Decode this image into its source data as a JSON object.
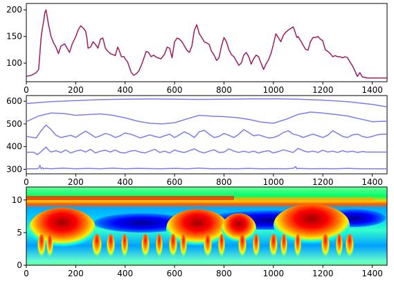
{
  "chart_data": [
    {
      "type": "line",
      "title": "",
      "xlabel": "",
      "ylabel": "",
      "xlim": [
        0,
        1460
      ],
      "ylim": [
        65,
        212
      ],
      "xticks": [
        "0",
        "200",
        "400",
        "600",
        "800",
        "1000",
        "1200",
        "1400"
      ],
      "yticks": [
        "100",
        "150",
        "200"
      ],
      "grid": false,
      "color": "#a0195f",
      "series": [
        {
          "x": [
            0,
            20,
            40,
            50,
            55,
            60,
            65,
            70,
            75,
            80,
            90,
            100,
            110,
            120,
            130,
            140,
            155,
            165,
            175,
            185,
            200,
            210,
            220,
            230,
            240,
            245,
            250,
            260,
            270,
            280,
            290,
            300,
            310,
            320,
            330,
            340,
            350,
            360,
            370,
            375,
            385,
            395,
            400,
            410,
            425,
            435,
            445,
            455,
            465,
            475,
            485,
            495,
            505,
            515,
            530,
            545,
            560,
            570,
            580,
            590,
            600,
            610,
            620,
            630,
            640,
            650,
            660,
            670,
            680,
            690,
            700,
            710,
            720,
            730,
            740,
            750,
            760,
            770,
            780,
            790,
            800,
            810,
            820,
            830,
            840,
            850,
            860,
            870,
            880,
            890,
            900,
            910,
            920,
            930,
            940,
            950,
            960,
            970,
            980,
            990,
            1000,
            1010,
            1020,
            1030,
            1040,
            1050,
            1060,
            1070,
            1080,
            1085,
            1090,
            1095,
            1100,
            1110,
            1120,
            1130,
            1140,
            1150,
            1160,
            1170,
            1180,
            1190,
            1200,
            1210,
            1220,
            1230,
            1240,
            1250,
            1260,
            1270,
            1280,
            1290,
            1300,
            1310,
            1320,
            1330,
            1335,
            1340,
            1350,
            1360,
            1380,
            1420,
            1460
          ],
          "values": [
            75,
            77,
            82,
            88,
            118,
            148,
            165,
            178,
            195,
            200,
            172,
            150,
            138,
            130,
            118,
            132,
            136,
            128,
            120,
            135,
            150,
            162,
            170,
            166,
            160,
            148,
            128,
            130,
            140,
            135,
            128,
            145,
            147,
            128,
            122,
            118,
            116,
            114,
            130,
            125,
            112,
            112,
            108,
            102,
            82,
            77,
            80,
            85,
            95,
            108,
            122,
            120,
            112,
            115,
            110,
            108,
            117,
            130,
            128,
            110,
            140,
            147,
            145,
            140,
            132,
            124,
            120,
            132,
            162,
            172,
            155,
            148,
            140,
            138,
            135,
            122,
            115,
            105,
            110,
            132,
            148,
            140,
            125,
            116,
            112,
            104,
            96,
            100,
            115,
            120,
            112,
            98,
            108,
            115,
            112,
            100,
            88,
            98,
            106,
            118,
            135,
            155,
            148,
            140,
            152,
            158,
            162,
            165,
            168,
            162,
            155,
            148,
            150,
            142,
            134,
            126,
            124,
            140,
            148,
            148,
            150,
            145,
            142,
            125,
            122,
            118,
            112,
            114,
            112,
            112,
            110,
            112,
            110,
            102,
            95,
            85,
            80,
            75,
            82,
            74,
            72,
            72,
            72
          ]
        }
      ]
    },
    {
      "type": "line",
      "title": "",
      "xlabel": "",
      "ylabel": "",
      "xlim": [
        0,
        1460
      ],
      "ylim": [
        280,
        625
      ],
      "xticks": [
        "0",
        "200",
        "400",
        "600",
        "800",
        "1000",
        "1200",
        "1400"
      ],
      "yticks": [
        "300",
        "400",
        "500",
        "600"
      ],
      "grid": false,
      "color": "#7b7bf0",
      "series": [
        {
          "x": [
            0,
            100,
            200,
            300,
            400,
            500,
            600,
            700,
            800,
            900,
            1000,
            1100,
            1200,
            1300,
            1400,
            1460
          ],
          "values": [
            590,
            598,
            603,
            607,
            609,
            610,
            609,
            608,
            609,
            610,
            611,
            609,
            605,
            598,
            586,
            575
          ]
        },
        {
          "x": [
            0,
            50,
            100,
            150,
            200,
            250,
            300,
            350,
            400,
            450,
            500,
            550,
            600,
            650,
            700,
            750,
            800,
            850,
            900,
            950,
            1000,
            1050,
            1100,
            1150,
            1200,
            1250,
            1300,
            1350,
            1400,
            1460
          ],
          "values": [
            510,
            535,
            548,
            546,
            538,
            541,
            544,
            538,
            527,
            512,
            503,
            500,
            505,
            522,
            538,
            534,
            532,
            528,
            520,
            508,
            503,
            520,
            542,
            552,
            548,
            542,
            535,
            522,
            510,
            512
          ]
        },
        {
          "x": [
            0,
            40,
            60,
            80,
            100,
            120,
            140,
            160,
            180,
            200,
            220,
            240,
            260,
            280,
            300,
            320,
            340,
            360,
            380,
            400,
            420,
            440,
            460,
            480,
            500,
            520,
            540,
            560,
            580,
            600,
            620,
            640,
            660,
            680,
            700,
            720,
            740,
            760,
            780,
            800,
            820,
            840,
            860,
            880,
            900,
            920,
            940,
            960,
            980,
            1000,
            1020,
            1040,
            1060,
            1080,
            1100,
            1120,
            1140,
            1160,
            1180,
            1200,
            1220,
            1240,
            1260,
            1280,
            1300,
            1320,
            1340,
            1360,
            1380,
            1400,
            1420,
            1440,
            1460
          ],
          "values": [
            445,
            438,
            470,
            495,
            475,
            450,
            440,
            445,
            450,
            440,
            455,
            468,
            455,
            440,
            448,
            458,
            452,
            440,
            448,
            460,
            455,
            448,
            438,
            445,
            452,
            445,
            440,
            448,
            455,
            440,
            452,
            465,
            455,
            440,
            465,
            472,
            455,
            440,
            445,
            458,
            450,
            440,
            455,
            475,
            462,
            448,
            452,
            445,
            438,
            440,
            448,
            462,
            470,
            455,
            450,
            440,
            448,
            455,
            448,
            440,
            450,
            470,
            458,
            445,
            440,
            452,
            455,
            445,
            440,
            445,
            452,
            455,
            455
          ]
        },
        {
          "x": [
            0,
            30,
            45,
            60,
            70,
            80,
            90,
            100,
            120,
            140,
            160,
            180,
            200,
            220,
            240,
            260,
            280,
            300,
            320,
            340,
            360,
            380,
            400,
            420,
            440,
            460,
            480,
            500,
            520,
            540,
            560,
            580,
            600,
            620,
            640,
            660,
            680,
            700,
            720,
            740,
            760,
            780,
            800,
            820,
            840,
            860,
            880,
            900,
            920,
            940,
            960,
            980,
            1000,
            1020,
            1040,
            1060,
            1080,
            1100,
            1120,
            1140,
            1160,
            1180,
            1200,
            1220,
            1240,
            1260,
            1280,
            1300,
            1320,
            1340,
            1360,
            1380,
            1400,
            1420,
            1440,
            1460
          ],
          "values": [
            375,
            375,
            365,
            378,
            388,
            398,
            385,
            376,
            382,
            374,
            385,
            372,
            380,
            385,
            376,
            388,
            372,
            380,
            384,
            376,
            385,
            374,
            372,
            380,
            383,
            376,
            372,
            380,
            388,
            374,
            380,
            372,
            385,
            378,
            374,
            382,
            390,
            378,
            372,
            380,
            386,
            374,
            376,
            390,
            380,
            374,
            380,
            374,
            380,
            372,
            378,
            382,
            372,
            378,
            386,
            380,
            374,
            392,
            382,
            376,
            380,
            374,
            384,
            376,
            380,
            374,
            382,
            376,
            380,
            374,
            378,
            376,
            376,
            376,
            376,
            376
          ]
        },
        {
          "x": [
            0,
            40,
            50,
            55,
            60,
            65,
            70,
            80,
            100,
            150,
            200,
            250,
            300,
            350,
            400,
            450,
            500,
            550,
            600,
            650,
            700,
            750,
            800,
            850,
            900,
            950,
            1000,
            1050,
            1080,
            1090,
            1095,
            1100,
            1150,
            1200,
            1250,
            1300,
            1350,
            1400,
            1460
          ],
          "values": [
            302,
            302,
            304,
            318,
            302,
            307,
            302,
            304,
            302,
            305,
            302,
            304,
            302,
            305,
            302,
            304,
            303,
            302,
            304,
            302,
            305,
            302,
            303,
            302,
            304,
            302,
            303,
            302,
            304,
            312,
            302,
            304,
            302,
            303,
            302,
            304,
            302,
            302,
            302
          ]
        }
      ]
    },
    {
      "type": "heatmap",
      "title": "",
      "xlabel": "",
      "ylabel": "",
      "xlim": [
        0,
        1460
      ],
      "ylim": [
        0,
        12
      ],
      "xticks": [
        "0",
        "200",
        "400",
        "600",
        "800",
        "1000",
        "1200",
        "1400"
      ],
      "yticks": [
        "0",
        "5",
        "10"
      ],
      "colormap": "jet",
      "description_of_values": "wavelet power; high (red) lobes around scale 5-8 at x approx 50-220, 580-780, 1020-1250; blue background at scale 8-10 between lobes"
    }
  ]
}
